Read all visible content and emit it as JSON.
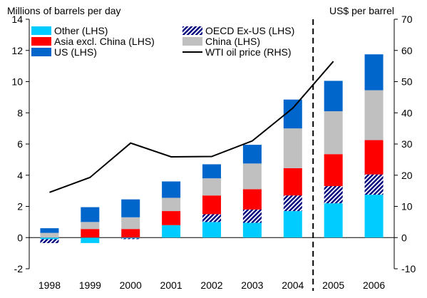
{
  "chart_data": {
    "type": "bar",
    "categories": [
      "1998",
      "1999",
      "2000",
      "2001",
      "2002",
      "2003",
      "2004",
      "2005",
      "2006"
    ],
    "left_axis_label": "Millions of barrels per day",
    "right_axis_label": "US$ per barrel",
    "ylim_left": [
      -2,
      14
    ],
    "ylim_right": [
      -10,
      70
    ],
    "yticks_left": [
      "-2",
      "0",
      "2",
      "4",
      "6",
      "8",
      "10",
      "12",
      "14"
    ],
    "yticks_right": [
      "-10",
      "0",
      "10",
      "20",
      "30",
      "40",
      "50",
      "60",
      "70"
    ],
    "series": [
      {
        "name": "Other (LHS)",
        "key": "other",
        "color": "#00ccff",
        "pattern": "solid",
        "values": [
          -0.1,
          -0.35,
          -0.05,
          0.8,
          1.0,
          0.95,
          1.7,
          2.2,
          2.75
        ]
      },
      {
        "name": "OECD Ex-US (LHS)",
        "key": "oecd",
        "color": "#000080",
        "pattern": "hatch",
        "values": [
          -0.25,
          0.0,
          -0.05,
          0.0,
          0.5,
          0.85,
          1.0,
          1.1,
          1.3
        ]
      },
      {
        "name": "Asia excl. China (LHS)",
        "key": "asia",
        "color": "#ff0000",
        "pattern": "solid",
        "values": [
          0.0,
          0.55,
          0.55,
          0.9,
          1.2,
          1.3,
          1.75,
          2.05,
          2.2
        ]
      },
      {
        "name": "China (LHS)",
        "key": "china",
        "color": "#c0c0c0",
        "pattern": "solid",
        "values": [
          0.3,
          0.45,
          0.75,
          0.85,
          1.1,
          1.65,
          2.55,
          2.75,
          3.2
        ]
      },
      {
        "name": "US (LHS)",
        "key": "us",
        "color": "#0066cc",
        "pattern": "solid",
        "values": [
          0.3,
          0.95,
          1.15,
          1.05,
          0.9,
          1.2,
          1.85,
          1.95,
          2.3
        ]
      }
    ],
    "line": {
      "name": "WTI oil price (RHS)",
      "color": "#000000",
      "values": [
        14.5,
        19.3,
        30.3,
        25.9,
        26.0,
        31.0,
        41.5,
        56.5
      ]
    },
    "legend": {
      "placement": "top-left",
      "order": [
        "other",
        "oecd",
        "asia",
        "china",
        "us",
        "line"
      ]
    },
    "divider_after": "2004",
    "grid": false
  }
}
